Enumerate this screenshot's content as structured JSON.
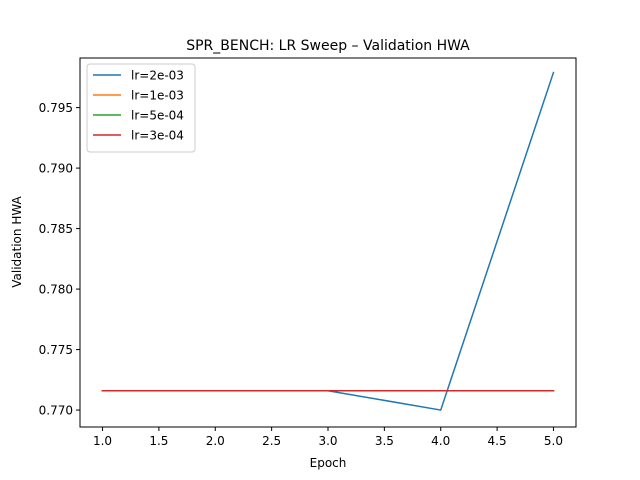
{
  "chart_data": {
    "type": "line",
    "title": "SPR_BENCH: LR Sweep – Validation HWA",
    "xlabel": "Epoch",
    "ylabel": "Validation HWA",
    "xlim": [
      0.8,
      5.2
    ],
    "ylim": [
      0.7686,
      0.7991
    ],
    "xticks": [
      1.0,
      1.5,
      2.0,
      2.5,
      3.0,
      3.5,
      4.0,
      4.5,
      5.0
    ],
    "xtick_labels": [
      "1.0",
      "1.5",
      "2.0",
      "2.5",
      "3.0",
      "3.5",
      "4.0",
      "4.5",
      "5.0"
    ],
    "yticks": [
      0.77,
      0.775,
      0.78,
      0.785,
      0.79,
      0.795
    ],
    "ytick_labels": [
      "0.770",
      "0.775",
      "0.780",
      "0.785",
      "0.790",
      "0.795"
    ],
    "grid": false,
    "legend_position": "top-left",
    "x": [
      1,
      2,
      3,
      4,
      5
    ],
    "series": [
      {
        "name": "lr=2e-03",
        "color": "#1f77b4",
        "values": [
          0.7716,
          0.7716,
          0.7716,
          0.77,
          0.7979
        ]
      },
      {
        "name": "lr=1e-03",
        "color": "#ff7f0e",
        "values": [
          0.7716,
          0.7716,
          0.7716,
          0.7716,
          0.7716
        ]
      },
      {
        "name": "lr=5e-04",
        "color": "#2ca02c",
        "values": [
          0.7716,
          0.7716,
          0.7716,
          0.7716,
          0.7716
        ]
      },
      {
        "name": "lr=3e-04",
        "color": "#d62728",
        "values": [
          0.7716,
          0.7716,
          0.7716,
          0.7716,
          0.7716
        ]
      }
    ]
  }
}
